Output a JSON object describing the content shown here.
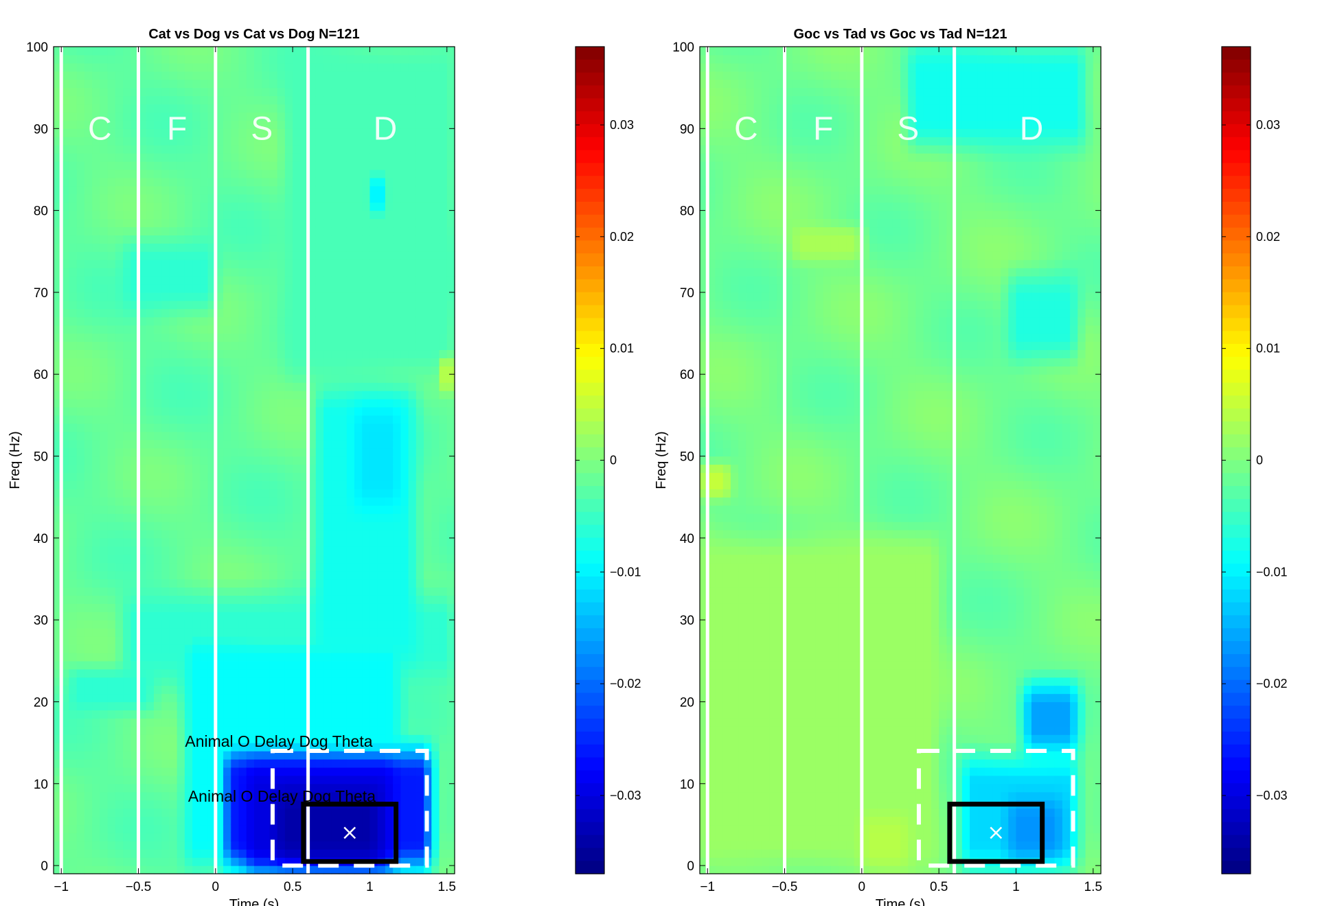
{
  "chart_data": [
    {
      "type": "heatmap",
      "title": "Cat vs Dog vs Cat vs Dog N=121",
      "xlabel": "Time (s)",
      "ylabel": "Freq (Hz)",
      "xlim": [
        -1.05,
        1.55
      ],
      "ylim": [
        -1,
        100
      ],
      "x_ticks": [
        -1,
        -0.5,
        0,
        0.5,
        1,
        1.5
      ],
      "x_tick_labels": [
        "−1",
        "−0.5",
        "0",
        "0.5",
        "1",
        "1.5"
      ],
      "y_ticks": [
        0,
        10,
        20,
        30,
        40,
        50,
        60,
        70,
        80,
        90,
        100
      ],
      "y_tick_labels": [
        "0",
        "10",
        "20",
        "30",
        "40",
        "50",
        "60",
        "70",
        "80",
        "90",
        "100"
      ],
      "colorbar": {
        "clim": [
          -0.037,
          0.037
        ],
        "ticks": [
          0.03,
          0.02,
          0.01,
          0,
          -0.01,
          -0.02,
          -0.03
        ],
        "tick_labels": [
          "0.03",
          "0.02",
          "0.01",
          "0",
          "−0.01",
          "−0.02",
          "−0.03"
        ]
      },
      "epoch_lines_s": [
        -1,
        -0.5,
        0,
        0.6
      ],
      "epoch_labels": [
        {
          "text": "C",
          "x": -0.75,
          "y": 90
        },
        {
          "text": "F",
          "x": -0.25,
          "y": 90
        },
        {
          "text": "S",
          "x": 0.3,
          "y": 90
        },
        {
          "text": "D",
          "x": 1.1,
          "y": 90
        }
      ],
      "roi_dashed": {
        "t0": 0.37,
        "t1": 1.37,
        "f0": 0,
        "f1": 14
      },
      "roi_box": {
        "t0": 0.57,
        "t1": 1.17,
        "f0": 0.5,
        "f1": 7.5
      },
      "peak_marker": {
        "x": 0.87,
        "y": 4
      },
      "annotations": [
        {
          "text": "Animal O Delay Dog Theta",
          "x": 0.41,
          "y": 14.5
        },
        {
          "text": "Animal O Delay Dog Theta",
          "x": 0.43,
          "y": 7.8
        }
      ],
      "blobs": [
        {
          "t0": 0.05,
          "t1": 1.4,
          "f0": 0,
          "f1": 14,
          "v": -0.026
        },
        {
          "t0": 0.2,
          "t1": 1.15,
          "f0": 0,
          "f1": 12,
          "v": -0.03
        },
        {
          "t0": 0.4,
          "t1": 1.05,
          "f0": 1,
          "f1": 9,
          "v": -0.034
        },
        {
          "t0": -0.2,
          "t1": 1.2,
          "f0": 0,
          "f1": 28,
          "v": -0.009
        },
        {
          "t0": -0.6,
          "t1": 1.55,
          "f0": 23,
          "f1": 33,
          "v": -0.006
        },
        {
          "t0": 0.65,
          "t1": 1.3,
          "f0": 25,
          "f1": 58,
          "v": -0.008
        },
        {
          "t0": 0.9,
          "t1": 1.2,
          "f0": 44,
          "f1": 56,
          "v": -0.011
        },
        {
          "t0": -0.6,
          "t1": -0.0,
          "f0": 68,
          "f1": 76,
          "v": -0.006
        },
        {
          "t0": -0.95,
          "t1": -0.4,
          "f0": 19,
          "f1": 24,
          "v": -0.006
        },
        {
          "t0": 0.45,
          "t1": 1.55,
          "f0": 60,
          "f1": 100,
          "v": -0.004
        },
        {
          "t0": 1.0,
          "t1": 1.1,
          "f0": 80,
          "f1": 84,
          "v": -0.01
        },
        {
          "t0": 1.45,
          "t1": 1.55,
          "f0": 58,
          "f1": 62,
          "v": 0.004
        }
      ],
      "background_value": -0.002
    },
    {
      "type": "heatmap",
      "title": "Goc vs Tad vs Goc vs Tad N=121",
      "xlabel": "Time (s)",
      "ylabel": "Freq (Hz)",
      "xlim": [
        -1.05,
        1.55
      ],
      "ylim": [
        -1,
        100
      ],
      "x_ticks": [
        -1,
        -0.5,
        0,
        0.5,
        1,
        1.5
      ],
      "x_tick_labels": [
        "−1",
        "−0.5",
        "0",
        "0.5",
        "1",
        "1.5"
      ],
      "y_ticks": [
        0,
        10,
        20,
        30,
        40,
        50,
        60,
        70,
        80,
        90,
        100
      ],
      "y_tick_labels": [
        "0",
        "10",
        "20",
        "30",
        "40",
        "50",
        "60",
        "70",
        "80",
        "90",
        "100"
      ],
      "colorbar": {
        "clim": [
          -0.037,
          0.037
        ],
        "ticks": [
          0.03,
          0.02,
          0.01,
          0,
          -0.01,
          -0.02,
          -0.03
        ],
        "tick_labels": [
          "0.03",
          "0.02",
          "0.01",
          "0",
          "−0.01",
          "−0.02",
          "−0.03"
        ]
      },
      "epoch_lines_s": [
        -1,
        -0.5,
        0,
        0.6
      ],
      "epoch_labels": [
        {
          "text": "C",
          "x": -0.75,
          "y": 90
        },
        {
          "text": "F",
          "x": -0.25,
          "y": 90
        },
        {
          "text": "S",
          "x": 0.3,
          "y": 90
        },
        {
          "text": "D",
          "x": 1.1,
          "y": 90
        }
      ],
      "roi_dashed": {
        "t0": 0.37,
        "t1": 1.37,
        "f0": 0,
        "f1": 14
      },
      "roi_box": {
        "t0": 0.57,
        "t1": 1.17,
        "f0": 0.5,
        "f1": 7.5
      },
      "peak_marker": {
        "x": 0.87,
        "y": 4
      },
      "annotations": [],
      "blobs": [
        {
          "t0": 0.65,
          "t1": 1.4,
          "f0": 0,
          "f1": 13,
          "v": -0.012
        },
        {
          "t0": 0.95,
          "t1": 1.3,
          "f0": 1,
          "f1": 8,
          "v": -0.017
        },
        {
          "t0": 1.05,
          "t1": 1.4,
          "f0": 14,
          "f1": 22,
          "v": -0.016
        },
        {
          "t0": 0.3,
          "t1": 1.45,
          "f0": 88,
          "f1": 100,
          "v": -0.008
        },
        {
          "t0": 0.95,
          "t1": 1.4,
          "f0": 62,
          "f1": 72,
          "v": -0.007
        },
        {
          "t0": -0.45,
          "t1": -0.0,
          "f0": 74,
          "f1": 78,
          "v": 0.003
        },
        {
          "t0": -1.05,
          "t1": -0.85,
          "f0": 45,
          "f1": 49,
          "v": 0.005
        },
        {
          "t0": -1.05,
          "t1": 0.5,
          "f0": 0,
          "f1": 40,
          "v": 0.002
        },
        {
          "t0": 0.0,
          "t1": 0.3,
          "f0": 0,
          "f1": 6,
          "v": 0.004
        }
      ],
      "background_value": -0.001
    }
  ]
}
